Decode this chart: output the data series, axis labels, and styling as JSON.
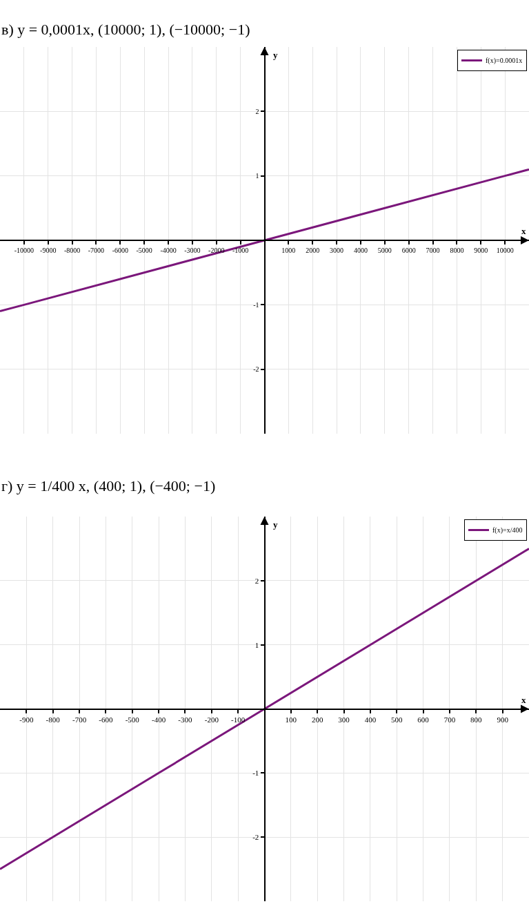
{
  "chart_data": [
    {
      "type": "line",
      "title": "в) y = 0,0001x, (10000; 1), (−10000; −1)",
      "xlabel": "x",
      "ylabel": "y",
      "x": [
        -11000,
        -10000,
        0,
        10000,
        11000
      ],
      "series": [
        {
          "name": "f(x)=0.0001x",
          "color": "#7b177b",
          "values": [
            -1.1,
            -1,
            0,
            1,
            1.1
          ]
        }
      ],
      "xlim": [
        -11000,
        11000
      ],
      "ylim": [
        -3,
        3
      ],
      "xticks": [
        -10000,
        -9000,
        -8000,
        -7000,
        -6000,
        -5000,
        -4000,
        -3000,
        -2000,
        -1000,
        1000,
        2000,
        3000,
        4000,
        5000,
        6000,
        7000,
        8000,
        9000,
        10000
      ],
      "yticks": [
        -2,
        -1,
        1,
        2
      ],
      "grid": true,
      "legend": "top right"
    },
    {
      "type": "line",
      "title": "г) y = 1/400 x, (400; 1), (−400; −1)",
      "xlabel": "x",
      "ylabel": "y",
      "x": [
        -1000,
        -400,
        0,
        400,
        1000
      ],
      "series": [
        {
          "name": "f(x)=x/400",
          "color": "#7b177b",
          "values": [
            -2.5,
            -1,
            0,
            1,
            2.5
          ]
        }
      ],
      "xlim": [
        -1000,
        1000
      ],
      "ylim": [
        -3,
        3
      ],
      "xticks": [
        -900,
        -800,
        -700,
        -600,
        -500,
        -400,
        -300,
        -200,
        -100,
        100,
        200,
        300,
        400,
        500,
        600,
        700,
        800,
        900
      ],
      "yticks": [
        -2,
        -1,
        1,
        2
      ],
      "grid": true,
      "legend": "top right"
    }
  ]
}
